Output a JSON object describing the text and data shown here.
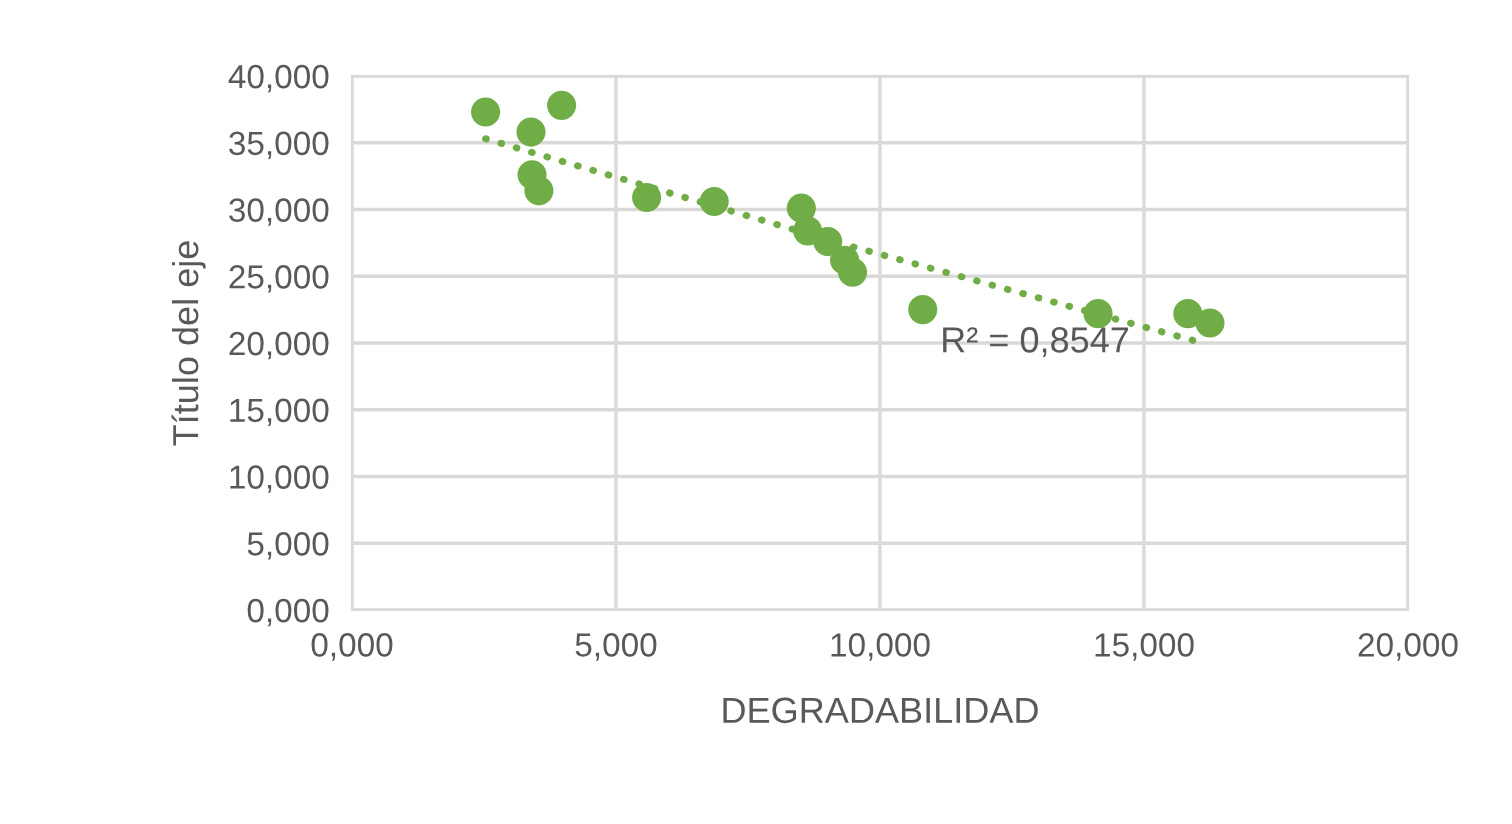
{
  "chart_data": {
    "type": "scatter",
    "xlabel": "DEGRADABILIDAD",
    "ylabel": "Título del eje",
    "series": [
      {
        "color": "#70ad47",
        "marker": "circle",
        "x": [
          2.53,
          3.39,
          3.97,
          3.41,
          3.54,
          5.58,
          6.86,
          8.51,
          8.63,
          9.01,
          9.33,
          9.48,
          10.81,
          14.13,
          15.83,
          16.25
        ],
        "values": [
          37.3,
          35.8,
          37.8,
          32.6,
          31.4,
          30.9,
          30.6,
          30.1,
          28.4,
          27.6,
          26.2,
          25.3,
          22.5,
          22.2,
          22.2,
          21.5
        ]
      },
      {
        "type": "line",
        "color": "#70ad47",
        "line_style": "dotted",
        "x": [
          2.53,
          9.4,
          16.2
        ],
        "values": [
          35.3,
          27.3,
          19.9
        ]
      }
    ],
    "annotations": [
      "R² = 0,8547"
    ],
    "xlim": [
      0,
      20
    ],
    "ylim": [
      0,
      40
    ],
    "xticks": [
      {
        "value": 0,
        "label": "0,000"
      },
      {
        "value": 5,
        "label": "5,000"
      },
      {
        "value": 10,
        "label": "10,000"
      },
      {
        "value": 15,
        "label": "15,000"
      },
      {
        "value": 20,
        "label": "20,000"
      }
    ],
    "yticks": [
      {
        "value": 0,
        "label": "0,000"
      },
      {
        "value": 5,
        "label": "5,000"
      },
      {
        "value": 10,
        "label": "10,000"
      },
      {
        "value": 15,
        "label": "15,000"
      },
      {
        "value": 20,
        "label": "20,000"
      },
      {
        "value": 25,
        "label": "25,000"
      },
      {
        "value": 30,
        "label": "30,000"
      },
      {
        "value": 35,
        "label": "35,000"
      },
      {
        "value": 40,
        "label": "40,000"
      }
    ],
    "grid": true
  }
}
